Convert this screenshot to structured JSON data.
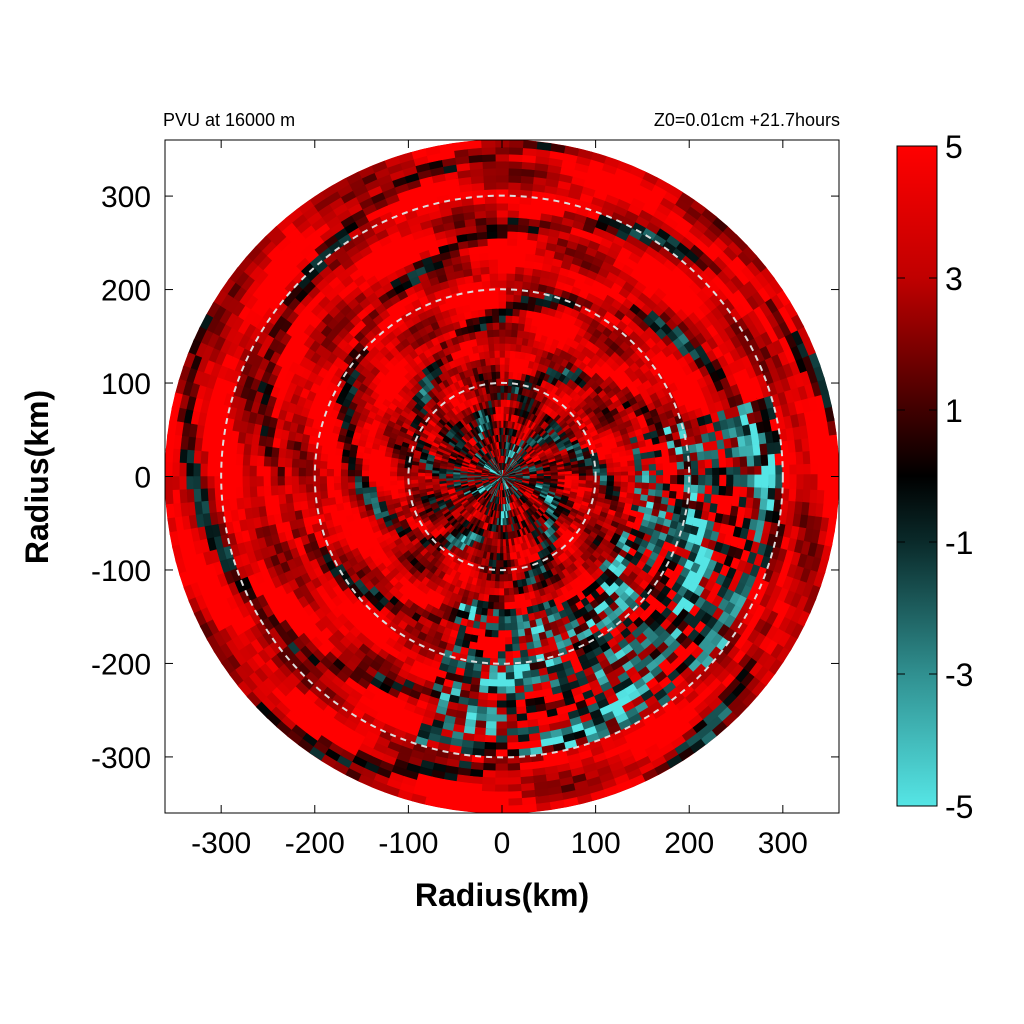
{
  "chart_data": {
    "type": "heatmap",
    "title_left": "PVU at 16000 m",
    "title_right": "Z0=0.01cm  +21.7hours",
    "xlabel": "Radius(km)",
    "ylabel": "Radius(km)",
    "xlim": [
      -360,
      360
    ],
    "ylim": [
      -360,
      360
    ],
    "x_ticks": [
      "-300",
      "-200",
      "-100",
      "0",
      "100",
      "200",
      "300"
    ],
    "y_ticks": [
      "300",
      "200",
      "100",
      "0",
      "-100",
      "-200",
      "-300"
    ],
    "domain_radius_km": 360,
    "reference_circles_km": [
      100,
      200,
      300
    ],
    "colorbar": {
      "range": [
        -5,
        5
      ],
      "tick_labels": [
        "5",
        "3",
        "1",
        "-1",
        "-3",
        "-5"
      ],
      "colors": {
        "high": "#ff0000",
        "mid": "#000000",
        "low": "#55e5e5"
      }
    },
    "field_pattern": "Values mostly between 3 and 5 (red) with banded structure; negative patches (cyan) concentrated within ~150 km and along an arc in the south-east quadrant at 150-300 km"
  }
}
